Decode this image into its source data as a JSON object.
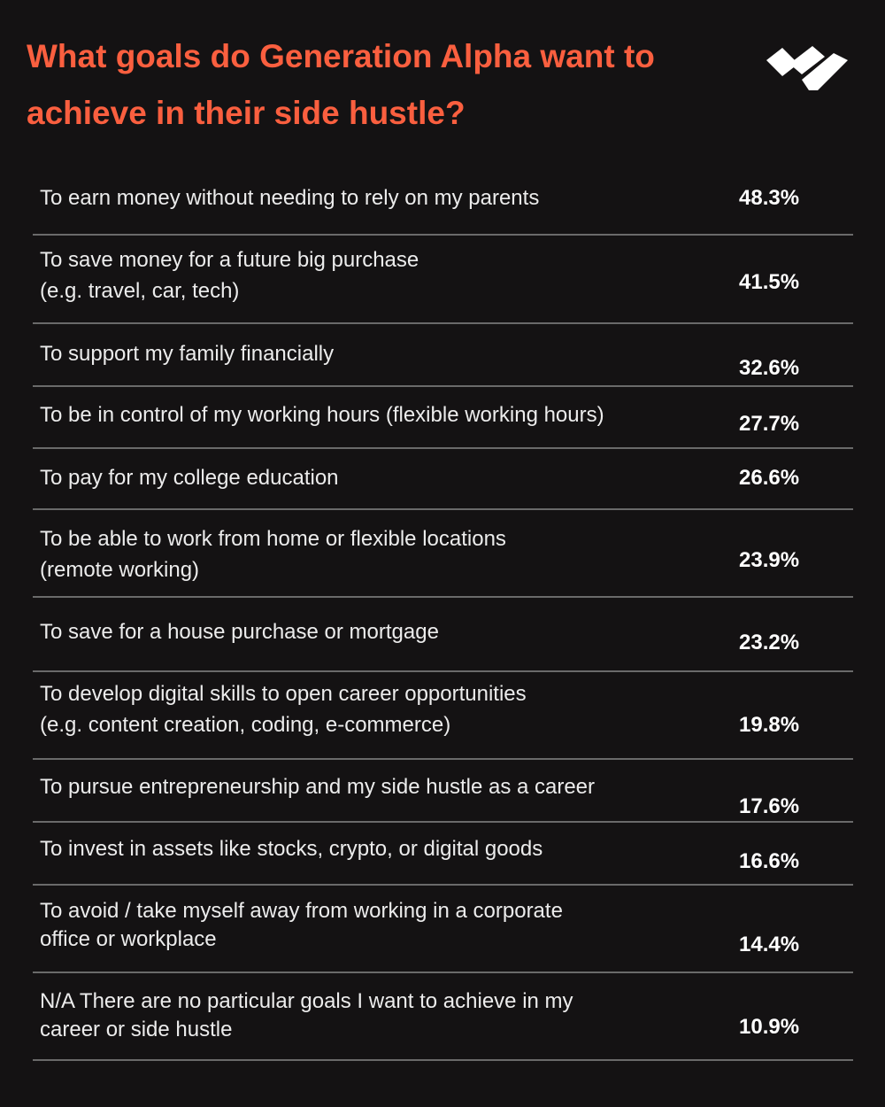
{
  "title": "What goals do Generation Alpha want to achieve in their side hustle?",
  "table": {
    "rows": [
      {
        "label": [
          "To earn money without needing to rely on my parents"
        ],
        "value": "48.3%"
      },
      {
        "label": [
          "To save money for a future big purchase",
          "(e.g. travel, car, tech)"
        ],
        "value": "41.5%"
      },
      {
        "label": [
          "To support my family financially"
        ],
        "value": "32.6%"
      },
      {
        "label": [
          "To be in control of my working hours (flexible working hours)"
        ],
        "value": "27.7%"
      },
      {
        "label": [
          "To pay for my college education"
        ],
        "value": "26.6%"
      },
      {
        "label": [
          "To be able to work from home or flexible locations",
          "(remote working)"
        ],
        "value": "23.9%"
      },
      {
        "label": [
          "To save for a house purchase or mortgage"
        ],
        "value": "23.2%"
      },
      {
        "label": [
          "To develop digital skills to open career opportunities",
          "(e.g. content creation, coding, e-commerce)"
        ],
        "value": "19.8%"
      },
      {
        "label": [
          "To pursue entrepreneurship and my side hustle as a career"
        ],
        "value": "17.6%"
      },
      {
        "label": [
          "To invest in assets like stocks, crypto, or digital goods"
        ],
        "value": "16.6%"
      },
      {
        "label": [
          "To avoid / take myself away from working in a corporate",
          "office or workplace"
        ],
        "value": "14.4%"
      },
      {
        "label": [
          "N/A There are no particular goals I want to achieve in my",
          "career or side hustle"
        ],
        "value": "10.9%"
      }
    ]
  }
}
